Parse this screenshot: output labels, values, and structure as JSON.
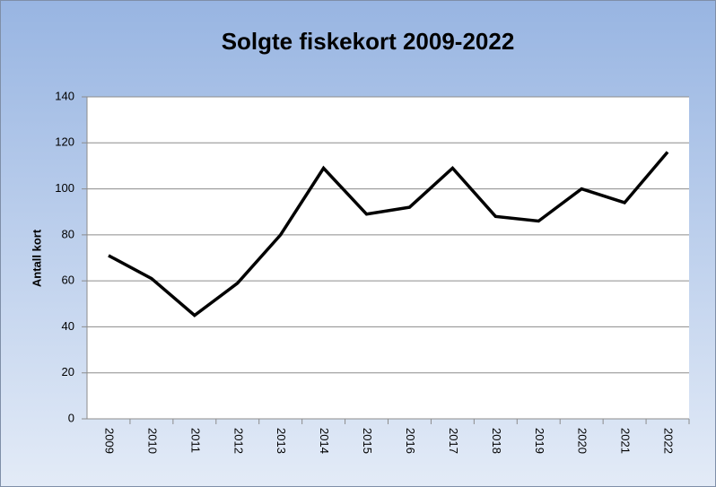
{
  "chart_data": {
    "type": "line",
    "title": "Solgte fiskekort 2009-2022",
    "y_label": "Antall kort",
    "categories": [
      "2009",
      "2010",
      "2011",
      "2012",
      "2013",
      "2014",
      "2015",
      "2016",
      "2017",
      "2018",
      "2019",
      "2020",
      "2021",
      "2022"
    ],
    "values": [
      71,
      61,
      45,
      59,
      80,
      109,
      89,
      92,
      109,
      88,
      86,
      100,
      94,
      116
    ],
    "color": "#000000",
    "ylim": [
      0,
      140
    ],
    "yticks": [
      0,
      20,
      40,
      60,
      80,
      100,
      120,
      140
    ],
    "grid": true
  }
}
